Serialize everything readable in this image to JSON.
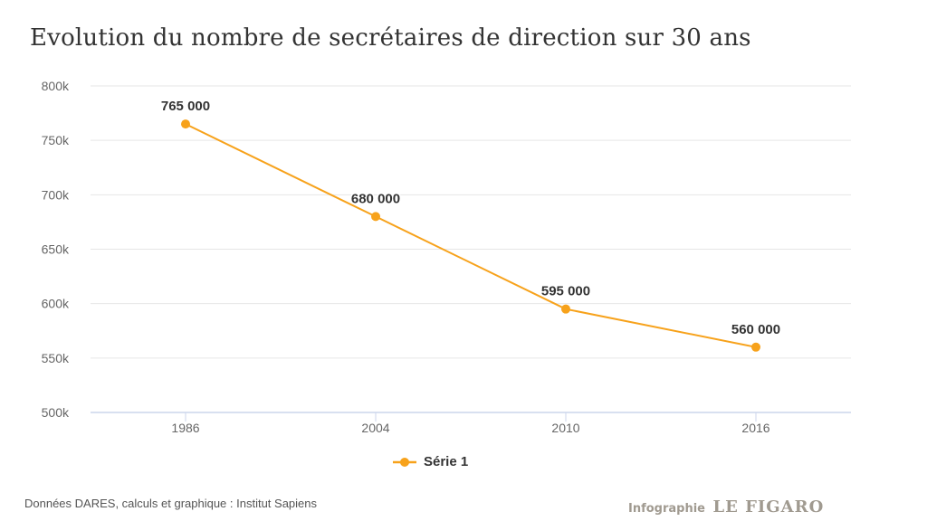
{
  "title": "Evolution du nombre de secrétaires de direction sur 30 ans",
  "source": "Données DARES, calculs et graphique : Institut Sapiens",
  "credit": {
    "prefix": "Infographie",
    "brand": "LE FIGARO"
  },
  "colors": {
    "series": "#f7a21b",
    "grid": "#e6e6e6",
    "axis": "#ccd6eb",
    "tick_text": "#666666",
    "label_text": "#333333"
  },
  "chart_data": {
    "type": "line",
    "title": "Evolution du nombre de secrétaires de direction sur 30 ans",
    "xlabel": "",
    "ylabel": "",
    "categories": [
      "1986",
      "2004",
      "2010",
      "2016"
    ],
    "series": [
      {
        "name": "Série 1",
        "values": [
          765000,
          680000,
          595000,
          560000
        ]
      }
    ],
    "data_labels": [
      "765 000",
      "680 000",
      "595 000",
      "560 000"
    ],
    "ylim": [
      500000,
      800000
    ],
    "yticks": [
      500000,
      550000,
      600000,
      650000,
      700000,
      750000,
      800000
    ],
    "ytick_labels": [
      "500k",
      "550k",
      "600k",
      "650k",
      "700k",
      "750k",
      "800k"
    ],
    "grid": true,
    "legend": "bottom-center"
  }
}
